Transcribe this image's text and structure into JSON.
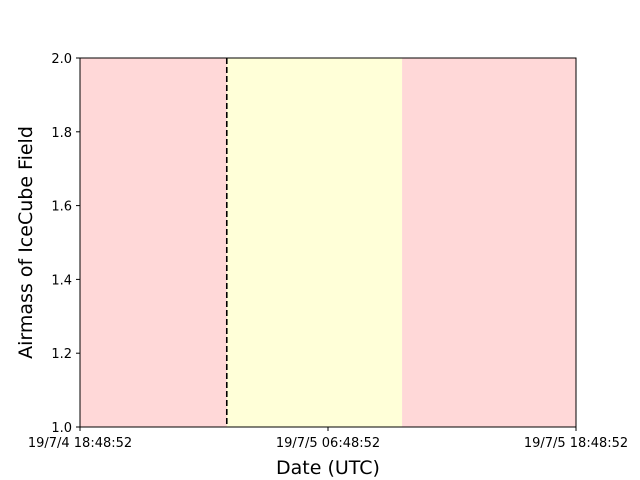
{
  "chart_data": {
    "type": "area",
    "title": "",
    "xlabel": "Date (UTC)",
    "ylabel": "Airmass of IceCube Field",
    "x_ticks": [
      "19/7/4 18:48:52",
      "19/7/5 06:48:52",
      "19/7/5 18:48:52"
    ],
    "y_ticks": [
      "1.0",
      "1.2",
      "1.4",
      "1.6",
      "1.8",
      "2.0"
    ],
    "xlim": [
      "2019-07-04 18:48:52",
      "2019-07-05 18:48:52"
    ],
    "ylim": [
      1.0,
      2.0
    ],
    "grid": false,
    "shaded_regions": [
      {
        "start": "2019-07-04 18:48:52",
        "end": "2019-07-05 10:24:00",
        "color": "#ffd8d8"
      },
      {
        "start": "2019-07-05 01:55:00",
        "end": "2019-07-05 10:24:00",
        "color": "#ffffd8"
      },
      {
        "start": "2019-07-05 10:24:00",
        "end": "2019-07-05 18:48:52",
        "color": "#ffd8d8"
      }
    ],
    "vertical_lines": [
      {
        "x": "2019-07-05 01:55:00",
        "style": "dashed",
        "color": "#000000"
      }
    ]
  }
}
